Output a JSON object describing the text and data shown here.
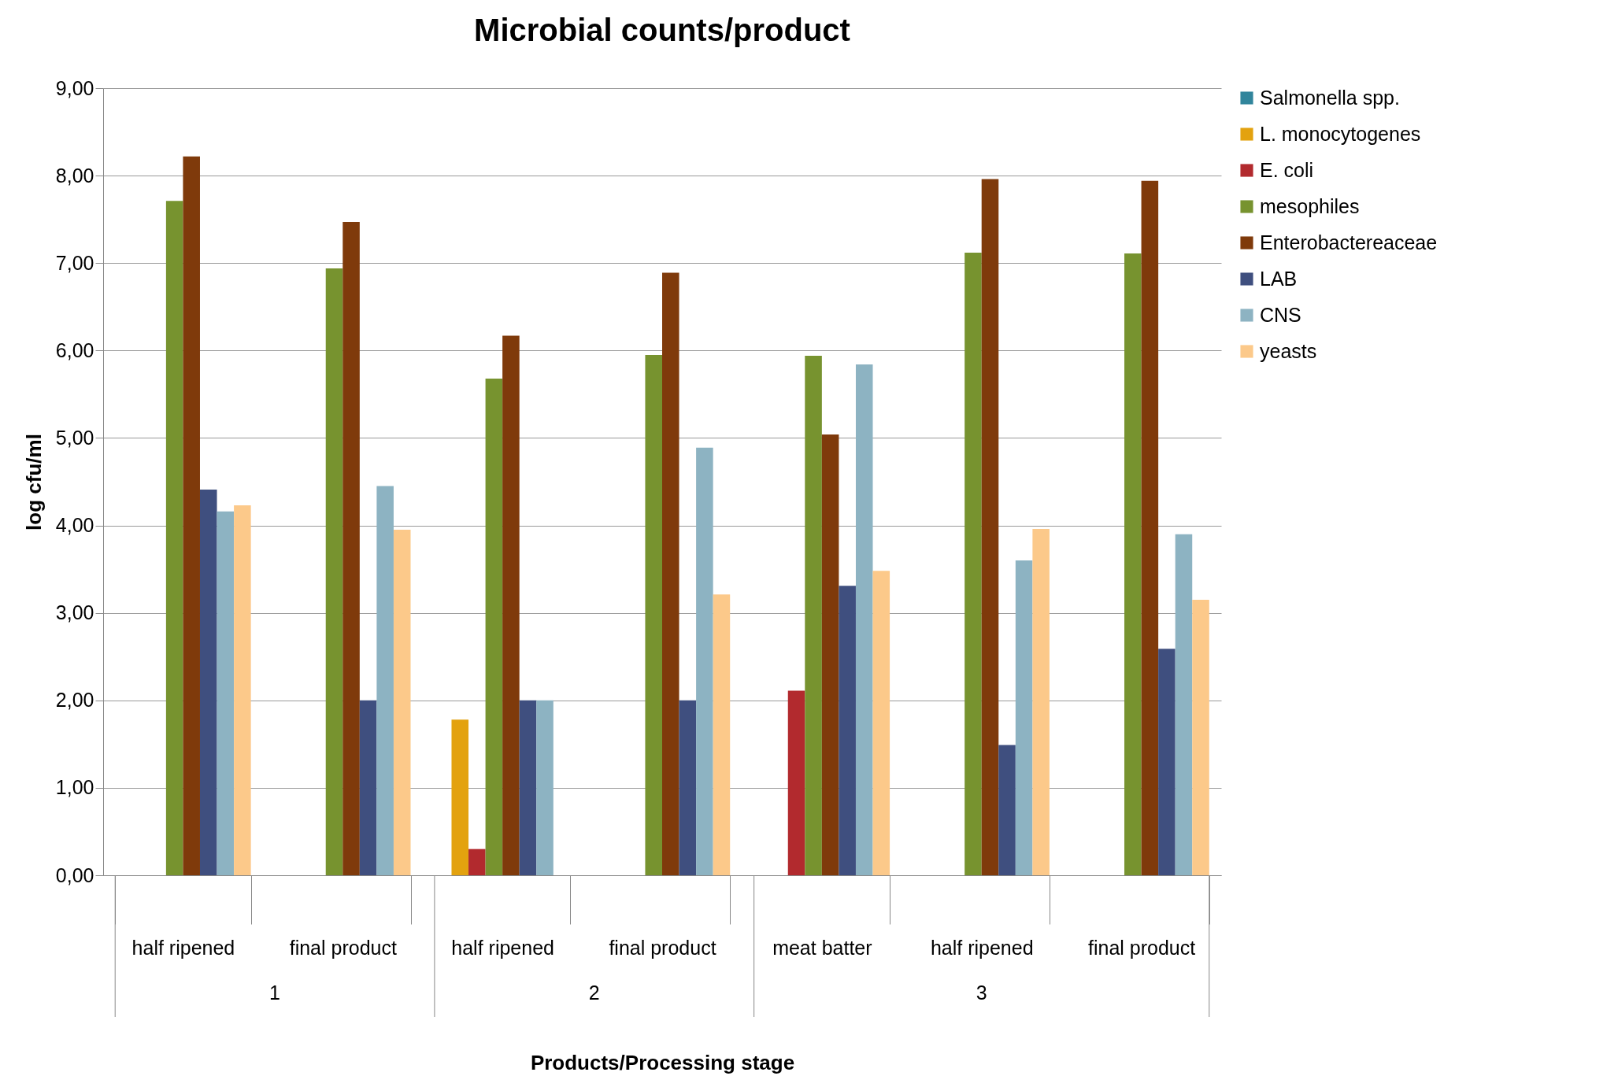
{
  "chart_data": {
    "type": "bar",
    "title": "Microbial counts/product",
    "xlabel": "Products/Processing stage",
    "ylabel": "log cfu/ml",
    "categories": [
      "half ripened",
      "final product",
      "half ripened",
      "final product",
      "meat batter",
      "half ripened",
      "final product"
    ],
    "annotations": [
      "1",
      "2",
      "3"
    ],
    "series": [
      {
        "name": "Salmonella spp.",
        "color": "#31859c",
        "values": [
          null,
          null,
          null,
          null,
          null,
          null,
          null
        ]
      },
      {
        "name": "L. monocytogenes",
        "color": "#e3a20f",
        "values": [
          null,
          null,
          1.78,
          null,
          null,
          null,
          null
        ]
      },
      {
        "name": "E. coli",
        "color": "#b22a2e",
        "values": [
          null,
          null,
          0.3,
          null,
          2.11,
          null,
          null
        ]
      },
      {
        "name": "mesophiles",
        "color": "#77932f",
        "values": [
          7.71,
          6.94,
          5.68,
          5.95,
          5.94,
          7.12,
          7.11
        ]
      },
      {
        "name": "Enterobactereaceae",
        "color": "#7f3a0b",
        "values": [
          8.22,
          7.47,
          6.17,
          6.89,
          5.04,
          7.96,
          7.94
        ]
      },
      {
        "name": "LAB",
        "color": "#3f4f7f",
        "values": [
          4.41,
          2.0,
          2.0,
          2.0,
          3.31,
          1.49,
          2.59
        ]
      },
      {
        "name": "CNS",
        "color": "#8db3c2",
        "values": [
          4.16,
          4.45,
          2.0,
          4.89,
          5.84,
          3.6,
          3.9
        ]
      },
      {
        "name": "yeasts",
        "color": "#fcc98a",
        "values": [
          4.23,
          3.95,
          null,
          3.21,
          3.48,
          3.96,
          3.15
        ]
      }
    ],
    "ylim": [
      0,
      9
    ],
    "yticks": [
      {
        "value": 0,
        "label": "0,00"
      },
      {
        "value": 1,
        "label": "1,00"
      },
      {
        "value": 2,
        "label": "2,00"
      },
      {
        "value": 3,
        "label": "3,00"
      },
      {
        "value": 4,
        "label": "4,00"
      },
      {
        "value": 5,
        "label": "5,00"
      },
      {
        "value": 6,
        "label": "6,00"
      },
      {
        "value": 7,
        "label": "7,00"
      },
      {
        "value": 8,
        "label": "8,00"
      },
      {
        "value": 9,
        "label": "9,00"
      }
    ],
    "grid": "y",
    "legend": "right"
  }
}
